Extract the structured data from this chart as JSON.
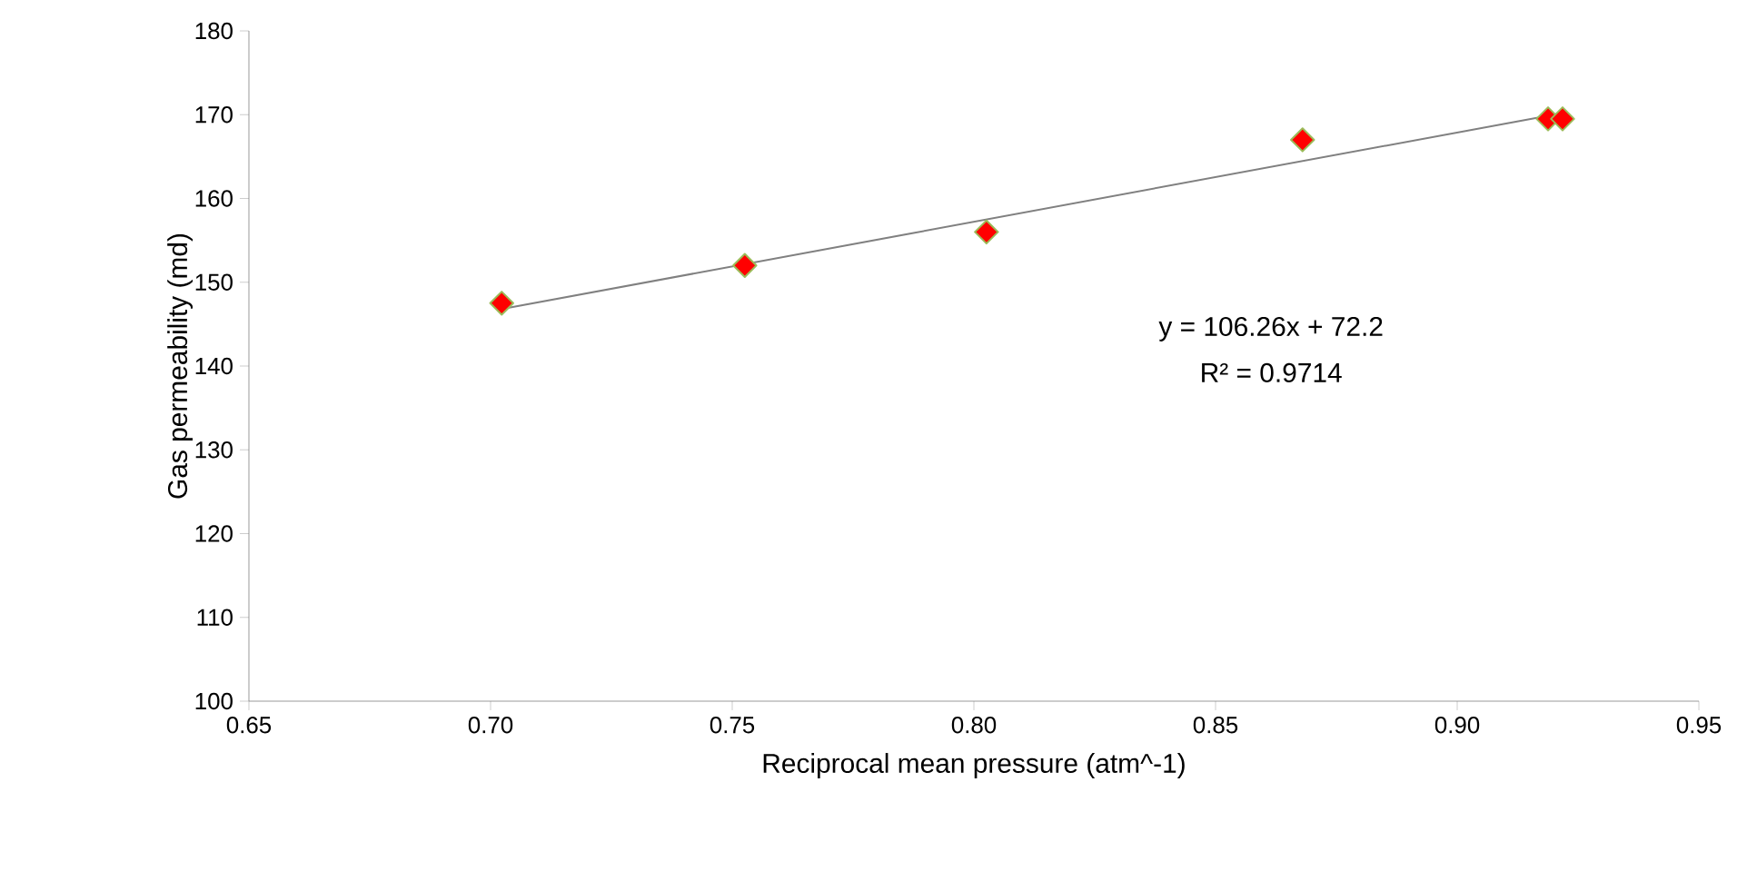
{
  "chart_data": {
    "type": "scatter",
    "xlabel": "Reciprocal mean pressure   (atm^-1)",
    "ylabel": "Gas  permeability (md)",
    "series": [
      {
        "color": "#ff0000",
        "x": [
          0.7023,
          0.7526,
          0.8026,
          0.868,
          0.9188,
          0.9218
        ],
        "values": [
          147.5,
          152,
          156,
          167,
          169.5,
          169.5
        ]
      },
      {
        "type": "line",
        "marker": "none",
        "color": "#808080",
        "x": [
          0.7023,
          0.9218
        ],
        "values": [
          146.8,
          170.2
        ]
      }
    ],
    "annotations": [
      "y = 106.26x  + 72.2",
      "R² = 0.9714"
    ],
    "xlim": [
      0.65,
      0.95
    ],
    "xticks": [
      0.65,
      {
        "value": 0.7,
        "label": "0.70"
      },
      0.75,
      {
        "value": 0.8,
        "label": "0.80"
      },
      0.85,
      {
        "value": 0.9,
        "label": "0.90"
      },
      0.95
    ],
    "ylim": [
      100,
      180
    ],
    "yticks": [
      100,
      110,
      120,
      130,
      140,
      150,
      160,
      170,
      180
    ],
    "marker": "diamond",
    "grid": false
  }
}
